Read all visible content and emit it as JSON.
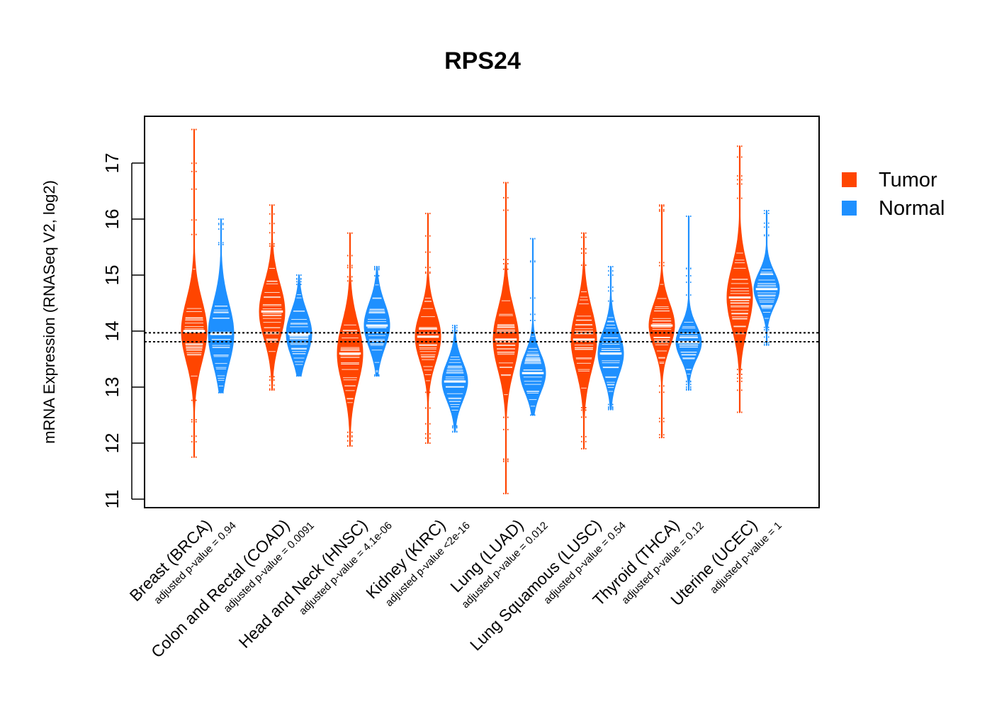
{
  "chart_data": {
    "type": "violin",
    "title": "RPS24",
    "ylabel": "mRNA Expression (RNASeq V2, log2)",
    "ylim": [
      10.85,
      17.85
    ],
    "yticks": [
      "11",
      "12",
      "13",
      "14",
      "15",
      "16",
      "17"
    ],
    "reference_lines": [
      13.97,
      13.81
    ],
    "legend": {
      "position": "right",
      "items": [
        {
          "label": "Tumor",
          "color": "#FF4500"
        },
        {
          "label": "Normal",
          "color": "#1E90FF"
        }
      ]
    },
    "groups": [
      {
        "category": "Breast (BRCA)",
        "pvalue": "adjusted p-value = 0.94",
        "tumor": {
          "min": 11.75,
          "max": 17.6,
          "median": 14.0,
          "spread": 0.55
        },
        "normal": {
          "min": 12.9,
          "max": 16.0,
          "median": 13.95,
          "spread": 0.55
        }
      },
      {
        "category": "Colon and Rectal (COAD)",
        "pvalue": "adjusted p-value = 0.0091",
        "tumor": {
          "min": 12.95,
          "max": 16.25,
          "median": 14.35,
          "spread": 0.5
        },
        "normal": {
          "min": 13.2,
          "max": 15.0,
          "median": 13.95,
          "spread": 0.4
        }
      },
      {
        "category": "Head and Neck (HNSC)",
        "pvalue": "adjusted p-value = 4.1e-06",
        "tumor": {
          "min": 11.95,
          "max": 15.75,
          "median": 13.6,
          "spread": 0.55
        },
        "normal": {
          "min": 13.2,
          "max": 15.15,
          "median": 14.1,
          "spread": 0.4
        }
      },
      {
        "category": "Kidney (KIRC)",
        "pvalue": "adjusted p-value <2e-16",
        "tumor": {
          "min": 12.0,
          "max": 16.1,
          "median": 13.9,
          "spread": 0.45
        },
        "normal": {
          "min": 12.2,
          "max": 14.1,
          "median": 13.1,
          "spread": 0.35
        }
      },
      {
        "category": "Lung (LUAD)",
        "pvalue": "adjusted p-value = 0.012",
        "tumor": {
          "min": 11.1,
          "max": 16.65,
          "median": 13.85,
          "spread": 0.55
        },
        "normal": {
          "min": 12.5,
          "max": 15.65,
          "median": 13.25,
          "spread": 0.35
        }
      },
      {
        "category": "Lung Squamous (LUSC)",
        "pvalue": "adjusted p-value = 0.54",
        "tumor": {
          "min": 11.9,
          "max": 15.75,
          "median": 13.85,
          "spread": 0.55
        },
        "normal": {
          "min": 12.6,
          "max": 15.15,
          "median": 13.6,
          "spread": 0.4
        }
      },
      {
        "category": "Thyroid (THCA)",
        "pvalue": "adjusted p-value = 0.12",
        "tumor": {
          "min": 12.1,
          "max": 16.25,
          "median": 14.1,
          "spread": 0.4
        },
        "normal": {
          "min": 12.95,
          "max": 16.05,
          "median": 13.8,
          "spread": 0.3
        }
      },
      {
        "category": "Uterine (UCEC)",
        "pvalue": "adjusted p-value = 1",
        "tumor": {
          "min": 12.55,
          "max": 17.3,
          "median": 14.6,
          "spread": 0.55
        },
        "normal": {
          "min": 13.75,
          "max": 16.15,
          "median": 14.75,
          "spread": 0.3
        }
      }
    ]
  }
}
